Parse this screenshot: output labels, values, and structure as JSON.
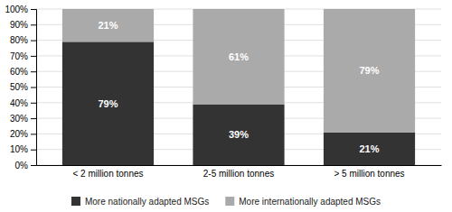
{
  "chart_data": {
    "type": "bar",
    "stacked": true,
    "categories": [
      "< 2 million tonnes",
      "2-5 million tonnes",
      "> 5 million tonnes"
    ],
    "series": [
      {
        "name": "More nationally adapted MSGs",
        "color": "#333333",
        "values": [
          79,
          39,
          21
        ],
        "value_labels": [
          "79%",
          "39%",
          "21%"
        ]
      },
      {
        "name": "More internationally adapted MSGs",
        "color": "#aaaaaa",
        "values": [
          21,
          61,
          79
        ],
        "value_labels": [
          "21%",
          "61%",
          "79%"
        ]
      }
    ],
    "ylim": [
      0,
      100
    ],
    "yticks": [
      {
        "value": 0,
        "label": "0%"
      },
      {
        "value": 10,
        "label": "10%"
      },
      {
        "value": 20,
        "label": "20%"
      },
      {
        "value": 30,
        "label": "30%"
      },
      {
        "value": 40,
        "label": "40%"
      },
      {
        "value": 50,
        "label": "50%"
      },
      {
        "value": 60,
        "label": "60%"
      },
      {
        "value": 70,
        "label": "70%"
      },
      {
        "value": 80,
        "label": "80%"
      },
      {
        "value": 90,
        "label": "90%"
      },
      {
        "value": 100,
        "label": "100%"
      }
    ],
    "grid": true,
    "data_labels": true,
    "legend": "bottom"
  }
}
